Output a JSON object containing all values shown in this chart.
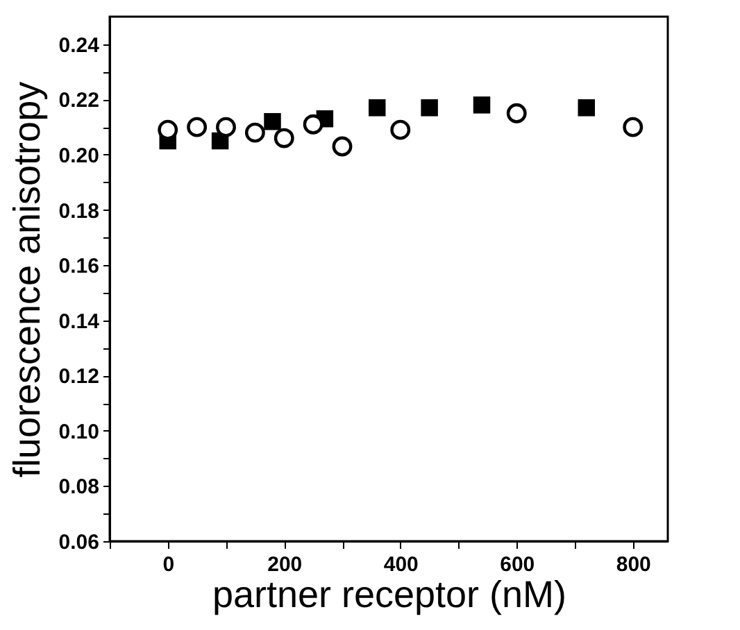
{
  "chart_data": {
    "type": "scatter",
    "xlabel": "partner receptor (nM)",
    "ylabel": "fluorescence anisotropy",
    "xlim": [
      -100,
      860
    ],
    "ylim": [
      0.06,
      0.25
    ],
    "xticks": [
      {
        "value": -100,
        "label": null
      },
      0,
      {
        "value": 100,
        "label": null
      },
      200,
      {
        "value": 300,
        "label": null
      },
      400,
      {
        "value": 500,
        "label": null
      },
      600,
      {
        "value": 700,
        "label": null
      },
      800
    ],
    "yticks": [
      {
        "value": 0.06,
        "label": "0.06"
      },
      {
        "value": 0.07,
        "label": null
      },
      {
        "value": 0.08,
        "label": "0.08"
      },
      {
        "value": 0.09,
        "label": null
      },
      {
        "value": 0.1,
        "label": "0.10"
      },
      {
        "value": 0.11,
        "label": null
      },
      {
        "value": 0.12,
        "label": "0.12"
      },
      {
        "value": 0.13,
        "label": null
      },
      {
        "value": 0.14,
        "label": "0.14"
      },
      {
        "value": 0.15,
        "label": null
      },
      {
        "value": 0.16,
        "label": "0.16"
      },
      {
        "value": 0.17,
        "label": null
      },
      {
        "value": 0.18,
        "label": "0.18"
      },
      {
        "value": 0.19,
        "label": null
      },
      {
        "value": 0.2,
        "label": "0.20"
      },
      {
        "value": 0.21,
        "label": null
      },
      {
        "value": 0.22,
        "label": "0.22"
      },
      {
        "value": 0.23,
        "label": null
      },
      {
        "value": 0.24,
        "label": "0.24"
      }
    ],
    "grid": false,
    "series": [
      {
        "marker": "square",
        "color": "#000000",
        "x": [
          0,
          90,
          180,
          270,
          360,
          450,
          540,
          720
        ],
        "values": [
          0.205,
          0.205,
          0.212,
          0.213,
          0.217,
          0.217,
          0.218,
          0.217
        ]
      },
      {
        "marker": "circle",
        "color": "#000000",
        "x": [
          0,
          50,
          100,
          150,
          200,
          250,
          300,
          400,
          600,
          800
        ],
        "values": [
          0.209,
          0.21,
          0.21,
          0.208,
          0.206,
          0.211,
          0.203,
          0.209,
          0.215,
          0.21
        ]
      }
    ]
  }
}
